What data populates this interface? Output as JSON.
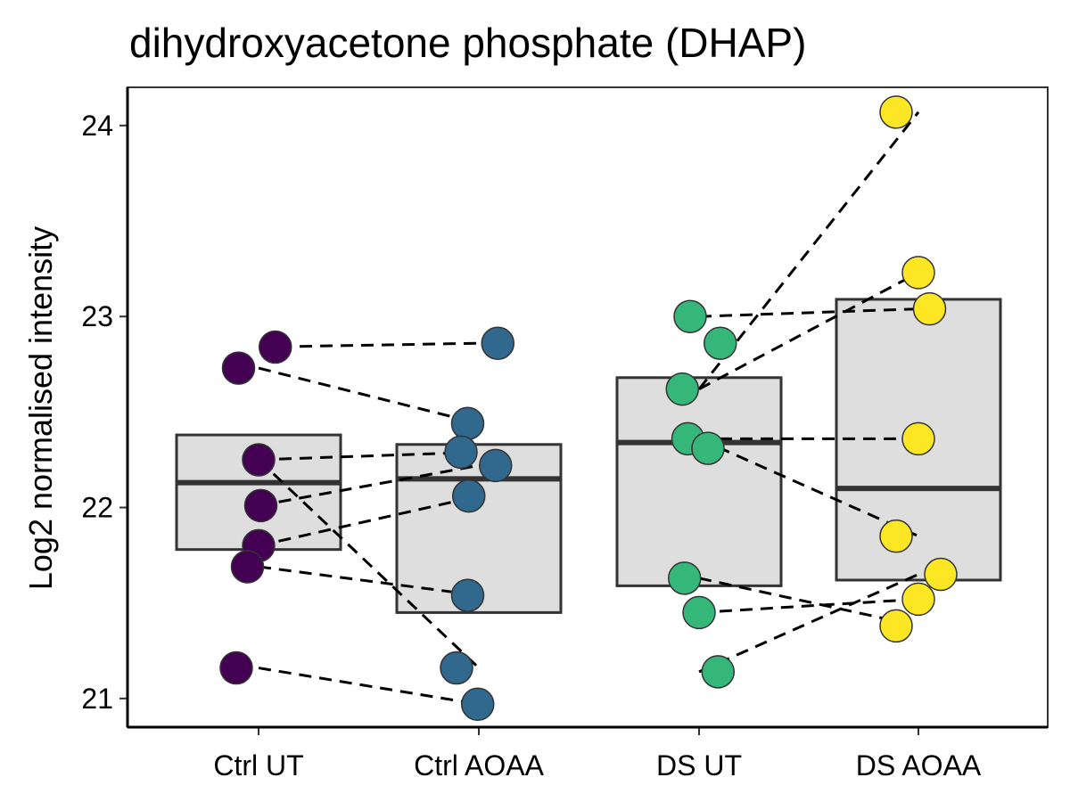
{
  "chart_data": {
    "type": "box_with_paired_points",
    "title": "dihydroxyacetone phosphate (DHAP)",
    "xlabel": "",
    "ylabel": "Log2 normalised intensity",
    "categories": [
      "Ctrl UT",
      "Ctrl AOAA",
      "DS UT",
      "DS AOAA"
    ],
    "ylim": [
      20.85,
      24.2
    ],
    "yticks": [
      21,
      22,
      23,
      24
    ],
    "grid": false,
    "legend": "none",
    "box_fill": "#dedede",
    "box_stroke": "#333333",
    "group_colors": [
      "#440154",
      "#31688e",
      "#35b779",
      "#fde725"
    ],
    "boxes": [
      {
        "category": "Ctrl UT",
        "q1": 21.78,
        "median": 22.13,
        "q3": 22.38
      },
      {
        "category": "Ctrl AOAA",
        "q1": 21.45,
        "median": 22.15,
        "q3": 22.33
      },
      {
        "category": "DS UT",
        "q1": 21.59,
        "median": 22.34,
        "q3": 22.68
      },
      {
        "category": "DS AOAA",
        "q1": 21.62,
        "median": 22.1,
        "q3": 23.09
      }
    ],
    "points": [
      [
        {
          "jitter": 0.15,
          "y": 22.84
        },
        {
          "jitter": -0.18,
          "y": 22.73
        },
        {
          "jitter": 0.0,
          "y": 22.25
        },
        {
          "jitter": 0.02,
          "y": 22.01
        },
        {
          "jitter": 0.0,
          "y": 21.8
        },
        {
          "jitter": -0.1,
          "y": 21.69
        },
        {
          "jitter": -0.2,
          "y": 21.16
        }
      ],
      [
        {
          "jitter": 0.17,
          "y": 22.86
        },
        {
          "jitter": -0.1,
          "y": 22.44
        },
        {
          "jitter": -0.16,
          "y": 22.29
        },
        {
          "jitter": 0.15,
          "y": 22.22
        },
        {
          "jitter": -0.09,
          "y": 22.06
        },
        {
          "jitter": -0.1,
          "y": 21.54
        },
        {
          "jitter": -0.2,
          "y": 21.16
        },
        {
          "jitter": -0.01,
          "y": 20.97
        }
      ],
      [
        {
          "jitter": -0.08,
          "y": 23.0
        },
        {
          "jitter": 0.19,
          "y": 22.86
        },
        {
          "jitter": -0.15,
          "y": 22.62
        },
        {
          "jitter": -0.1,
          "y": 22.36
        },
        {
          "jitter": 0.08,
          "y": 22.31
        },
        {
          "jitter": -0.13,
          "y": 21.63
        },
        {
          "jitter": 0.0,
          "y": 21.45
        },
        {
          "jitter": 0.17,
          "y": 21.14
        }
      ],
      [
        {
          "jitter": -0.2,
          "y": 24.07
        },
        {
          "jitter": 0.0,
          "y": 23.23
        },
        {
          "jitter": 0.1,
          "y": 23.04
        },
        {
          "jitter": 0.0,
          "y": 22.36
        },
        {
          "jitter": -0.2,
          "y": 21.85
        },
        {
          "jitter": 0.2,
          "y": 21.65
        },
        {
          "jitter": 0.0,
          "y": 21.52
        },
        {
          "jitter": -0.2,
          "y": 21.38
        }
      ]
    ],
    "pair_lines": [
      {
        "from": [
          0,
          22.84
        ],
        "to": [
          1,
          22.86
        ]
      },
      {
        "from": [
          0,
          22.73
        ],
        "to": [
          1,
          22.44
        ]
      },
      {
        "from": [
          0,
          22.25
        ],
        "to": [
          1,
          22.29
        ]
      },
      {
        "from": [
          0,
          22.01
        ],
        "to": [
          1,
          22.22
        ]
      },
      {
        "from": [
          0,
          21.8
        ],
        "to": [
          1,
          22.06
        ]
      },
      {
        "from": [
          0,
          21.69
        ],
        "to": [
          1,
          21.54
        ]
      },
      {
        "from": [
          0,
          22.25
        ],
        "to": [
          1,
          21.16
        ]
      },
      {
        "from": [
          0,
          21.16
        ],
        "to": [
          1,
          20.97
        ]
      },
      {
        "from": [
          2,
          23.0
        ],
        "to": [
          3,
          23.04
        ]
      },
      {
        "from": [
          2,
          22.62
        ],
        "to": [
          3,
          24.07
        ]
      },
      {
        "from": [
          2,
          22.62
        ],
        "to": [
          3,
          23.23
        ]
      },
      {
        "from": [
          2,
          22.36
        ],
        "to": [
          3,
          22.36
        ]
      },
      {
        "from": [
          2,
          22.36
        ],
        "to": [
          3,
          21.85
        ]
      },
      {
        "from": [
          2,
          21.63
        ],
        "to": [
          3,
          21.38
        ]
      },
      {
        "from": [
          2,
          21.45
        ],
        "to": [
          3,
          21.52
        ]
      },
      {
        "from": [
          2,
          21.14
        ],
        "to": [
          3,
          21.65
        ]
      }
    ]
  }
}
